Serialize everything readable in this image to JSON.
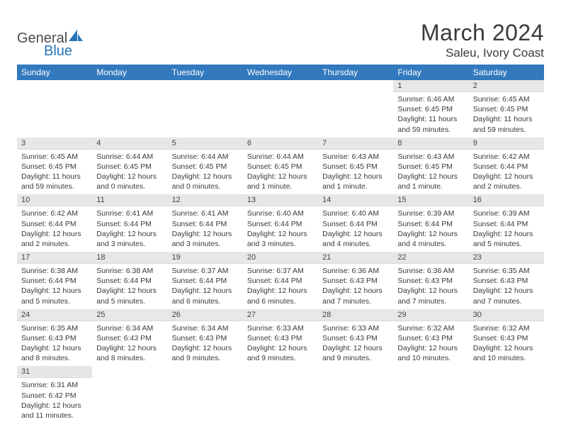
{
  "colors": {
    "header_bg": "#3279bd",
    "header_text": "#ffffff",
    "daynum_bg": "#e7e7e7",
    "row_divider": "#2f6aa8",
    "body_text": "#3a3a3a",
    "logo_gray": "#4a4a4a",
    "logo_blue": "#2873b8",
    "background": "#ffffff"
  },
  "typography": {
    "month_title_size": 32,
    "location_size": 17,
    "weekday_size": 12,
    "daynum_size": 11,
    "body_size": 10.5,
    "font_family": "Arial"
  },
  "logo": {
    "line1": "General",
    "line2": "Blue"
  },
  "title": "March 2024",
  "location": "Saleu, Ivory Coast",
  "weekdays": [
    "Sunday",
    "Monday",
    "Tuesday",
    "Wednesday",
    "Thursday",
    "Friday",
    "Saturday"
  ],
  "days": {
    "1": {
      "sunrise": "6:46 AM",
      "sunset": "6:45 PM",
      "daylight": "11 hours and 59 minutes."
    },
    "2": {
      "sunrise": "6:45 AM",
      "sunset": "6:45 PM",
      "daylight": "11 hours and 59 minutes."
    },
    "3": {
      "sunrise": "6:45 AM",
      "sunset": "6:45 PM",
      "daylight": "11 hours and 59 minutes."
    },
    "4": {
      "sunrise": "6:44 AM",
      "sunset": "6:45 PM",
      "daylight": "12 hours and 0 minutes."
    },
    "5": {
      "sunrise": "6:44 AM",
      "sunset": "6:45 PM",
      "daylight": "12 hours and 0 minutes."
    },
    "6": {
      "sunrise": "6:44 AM",
      "sunset": "6:45 PM",
      "daylight": "12 hours and 1 minute."
    },
    "7": {
      "sunrise": "6:43 AM",
      "sunset": "6:45 PM",
      "daylight": "12 hours and 1 minute."
    },
    "8": {
      "sunrise": "6:43 AM",
      "sunset": "6:45 PM",
      "daylight": "12 hours and 1 minute."
    },
    "9": {
      "sunrise": "6:42 AM",
      "sunset": "6:44 PM",
      "daylight": "12 hours and 2 minutes."
    },
    "10": {
      "sunrise": "6:42 AM",
      "sunset": "6:44 PM",
      "daylight": "12 hours and 2 minutes."
    },
    "11": {
      "sunrise": "6:41 AM",
      "sunset": "6:44 PM",
      "daylight": "12 hours and 3 minutes."
    },
    "12": {
      "sunrise": "6:41 AM",
      "sunset": "6:44 PM",
      "daylight": "12 hours and 3 minutes."
    },
    "13": {
      "sunrise": "6:40 AM",
      "sunset": "6:44 PM",
      "daylight": "12 hours and 3 minutes."
    },
    "14": {
      "sunrise": "6:40 AM",
      "sunset": "6:44 PM",
      "daylight": "12 hours and 4 minutes."
    },
    "15": {
      "sunrise": "6:39 AM",
      "sunset": "6:44 PM",
      "daylight": "12 hours and 4 minutes."
    },
    "16": {
      "sunrise": "6:39 AM",
      "sunset": "6:44 PM",
      "daylight": "12 hours and 5 minutes."
    },
    "17": {
      "sunrise": "6:38 AM",
      "sunset": "6:44 PM",
      "daylight": "12 hours and 5 minutes."
    },
    "18": {
      "sunrise": "6:38 AM",
      "sunset": "6:44 PM",
      "daylight": "12 hours and 5 minutes."
    },
    "19": {
      "sunrise": "6:37 AM",
      "sunset": "6:44 PM",
      "daylight": "12 hours and 6 minutes."
    },
    "20": {
      "sunrise": "6:37 AM",
      "sunset": "6:44 PM",
      "daylight": "12 hours and 6 minutes."
    },
    "21": {
      "sunrise": "6:36 AM",
      "sunset": "6:43 PM",
      "daylight": "12 hours and 7 minutes."
    },
    "22": {
      "sunrise": "6:36 AM",
      "sunset": "6:43 PM",
      "daylight": "12 hours and 7 minutes."
    },
    "23": {
      "sunrise": "6:35 AM",
      "sunset": "6:43 PM",
      "daylight": "12 hours and 7 minutes."
    },
    "24": {
      "sunrise": "6:35 AM",
      "sunset": "6:43 PM",
      "daylight": "12 hours and 8 minutes."
    },
    "25": {
      "sunrise": "6:34 AM",
      "sunset": "6:43 PM",
      "daylight": "12 hours and 8 minutes."
    },
    "26": {
      "sunrise": "6:34 AM",
      "sunset": "6:43 PM",
      "daylight": "12 hours and 9 minutes."
    },
    "27": {
      "sunrise": "6:33 AM",
      "sunset": "6:43 PM",
      "daylight": "12 hours and 9 minutes."
    },
    "28": {
      "sunrise": "6:33 AM",
      "sunset": "6:43 PM",
      "daylight": "12 hours and 9 minutes."
    },
    "29": {
      "sunrise": "6:32 AM",
      "sunset": "6:43 PM",
      "daylight": "12 hours and 10 minutes."
    },
    "30": {
      "sunrise": "6:32 AM",
      "sunset": "6:43 PM",
      "daylight": "12 hours and 10 minutes."
    },
    "31": {
      "sunrise": "6:31 AM",
      "sunset": "6:42 PM",
      "daylight": "12 hours and 11 minutes."
    }
  },
  "labels": {
    "sunrise": "Sunrise:",
    "sunset": "Sunset:",
    "daylight": "Daylight:"
  },
  "calendar_layout": {
    "first_weekday_index": 5,
    "num_days": 31,
    "weeks": 6
  }
}
